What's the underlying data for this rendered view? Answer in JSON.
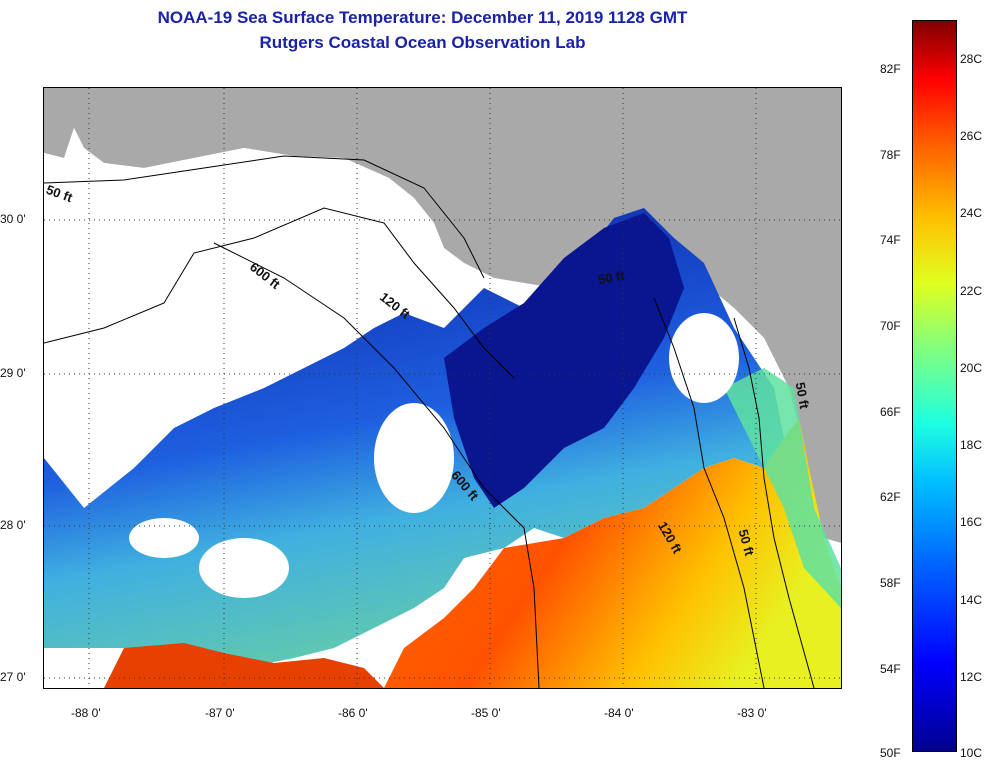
{
  "title": {
    "line1": "NOAA-19 Sea Surface Temperature:  December 11, 2019 1128 GMT",
    "line2": "Rutgers Coastal Ocean Observation Lab"
  },
  "map": {
    "lon_labels": [
      "-88 0'",
      "-87 0'",
      "-86 0'",
      "-85 0'",
      "-84 0'",
      "-83 0'"
    ],
    "lat_labels": [
      "30 0'",
      "29 0'",
      "28 0'",
      "27 0'"
    ],
    "contour_labels": [
      "50 ft",
      "600 ft",
      "120 ft",
      "50 ft",
      "600 ft",
      "120 ft",
      "50 ft",
      "50 ft"
    ],
    "land_color": "#a9a9a9",
    "cloud_color": "#ffffff"
  },
  "colorbar": {
    "fahrenheit_labels": [
      "82F",
      "78F",
      "74F",
      "70F",
      "66F",
      "62F",
      "58F",
      "54F",
      "50F"
    ],
    "celsius_labels": [
      "28C",
      "26C",
      "24C",
      "22C",
      "20C",
      "18C",
      "16C",
      "14C",
      "12C",
      "10C"
    ],
    "range_c": [
      10,
      29
    ]
  }
}
